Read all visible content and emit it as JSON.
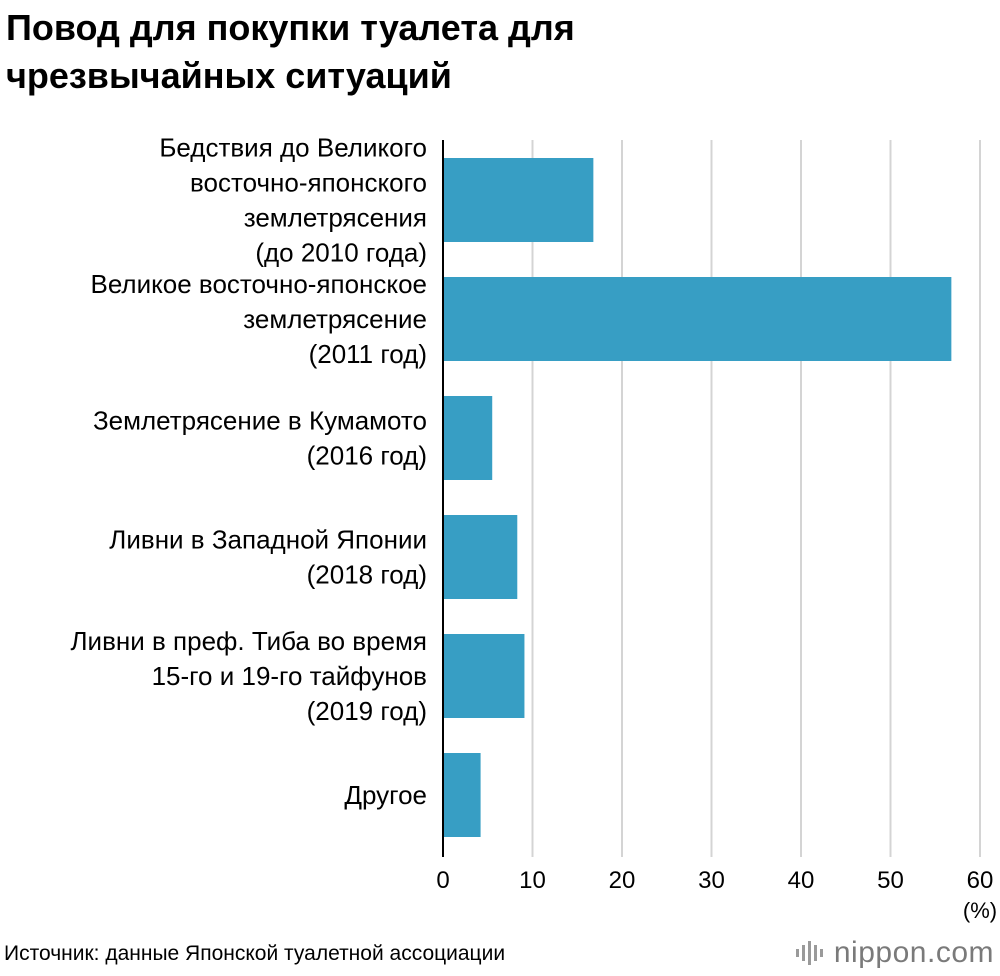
{
  "chart_data": {
    "type": "bar",
    "orientation": "horizontal",
    "title": "Повод для покупки туалета для чрезвычайных ситуаций",
    "title_lines": [
      "Повод для покупки туалета для",
      "чрезвычайных ситуаций"
    ],
    "categories": [
      [
        "Бедствия до Великого",
        "восточно-японского",
        "землетрясения",
        "(до 2010 года)"
      ],
      [
        "Великое восточно-японское",
        "землетрясение",
        "(2011 год)"
      ],
      [
        "Землетрясение в Кумамото",
        "(2016 год)"
      ],
      [
        "Ливни в Западной Японии",
        "(2018 год)"
      ],
      [
        "Ливни в преф. Тиба во время",
        "15-го и 19-го тайфунов",
        "(2019 год)"
      ],
      [
        "Другое"
      ]
    ],
    "values": [
      16.8,
      56.8,
      5.5,
      8.3,
      9.1,
      4.2
    ],
    "xlim": [
      0,
      60
    ],
    "xticks": [
      "0",
      "10",
      "20",
      "30",
      "40",
      "50",
      "60"
    ],
    "xlabel": "(%)",
    "ylabel": "",
    "grid": true,
    "bar_color": "#379ec4"
  },
  "footer": {
    "source": "Источник: данные Японской туалетной ассоциации",
    "brand_name": "nippon",
    "brand_dot": ".",
    "brand_suffix": "com",
    "brand_icon": "nippon-logo-icon"
  }
}
